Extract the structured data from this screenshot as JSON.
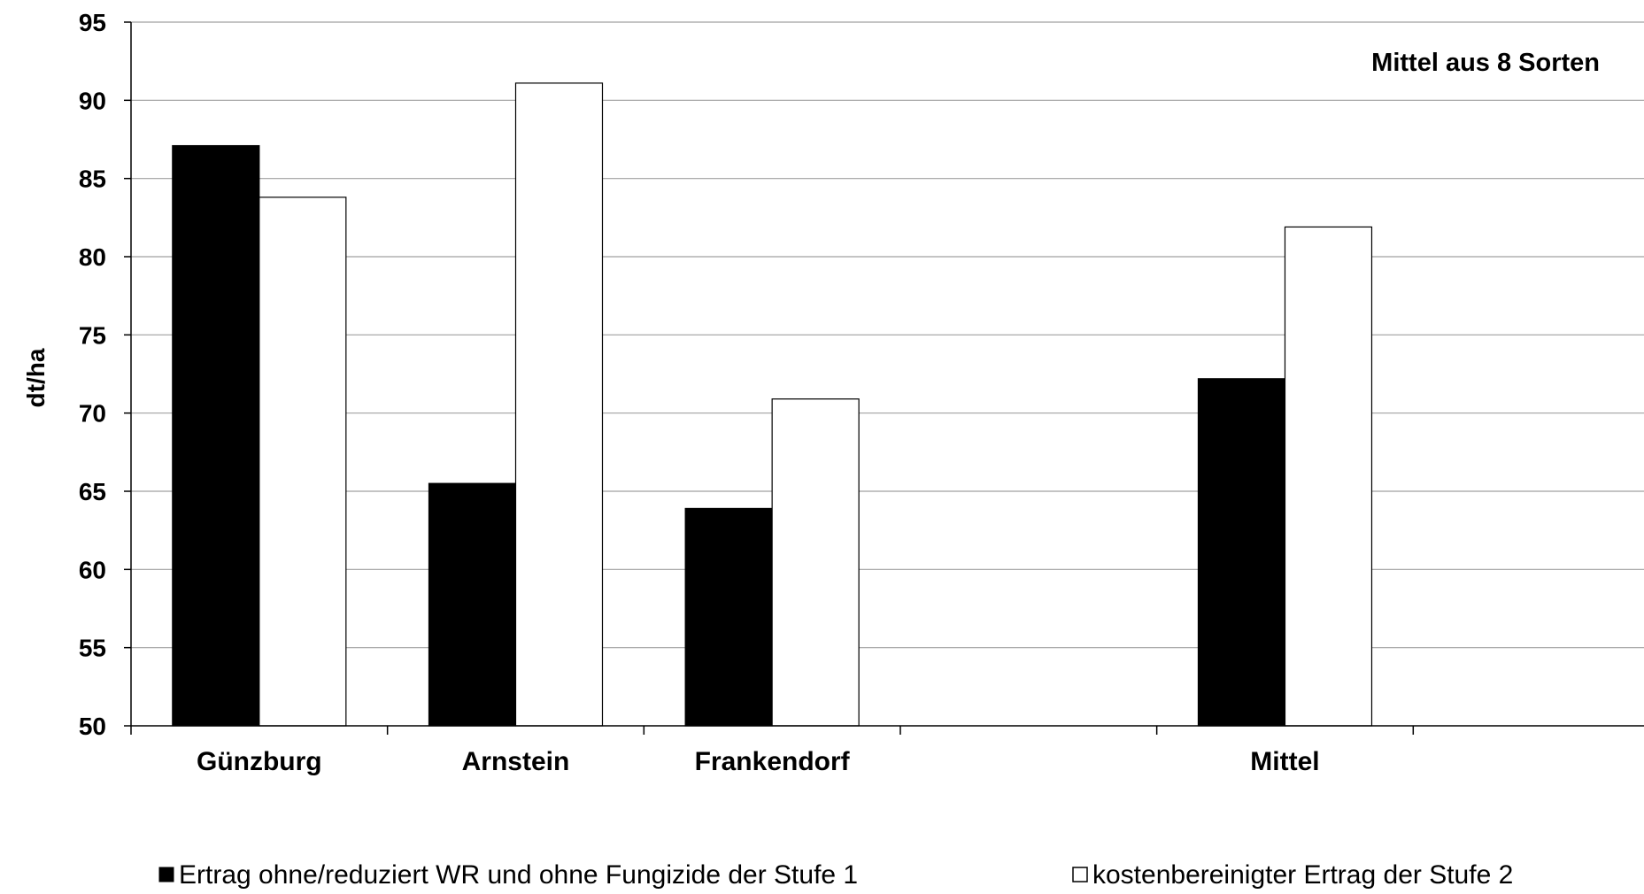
{
  "chart_data": {
    "type": "bar",
    "categories": [
      "Günzburg",
      "Arnstein",
      "Frankendorf",
      "",
      "Mittel"
    ],
    "series": [
      {
        "name": "Ertrag ohne/reduziert WR und ohne Fungizide der Stufe 1",
        "color": "#000000",
        "values": [
          87.1,
          65.5,
          63.9,
          null,
          72.2
        ]
      },
      {
        "name": "kostenbereinigter Ertrag der Stufe 2",
        "color": "#ffffff",
        "values": [
          83.8,
          91.1,
          70.9,
          null,
          81.9
        ]
      }
    ],
    "ylabel": "dt/ha",
    "xlabel": "",
    "ylim": [
      50,
      95
    ],
    "yticks": [
      50,
      55,
      60,
      65,
      70,
      75,
      80,
      85,
      90,
      95
    ],
    "annotation": "Mittel aus 8 Sorten",
    "grid": true,
    "legend_position": "bottom"
  }
}
